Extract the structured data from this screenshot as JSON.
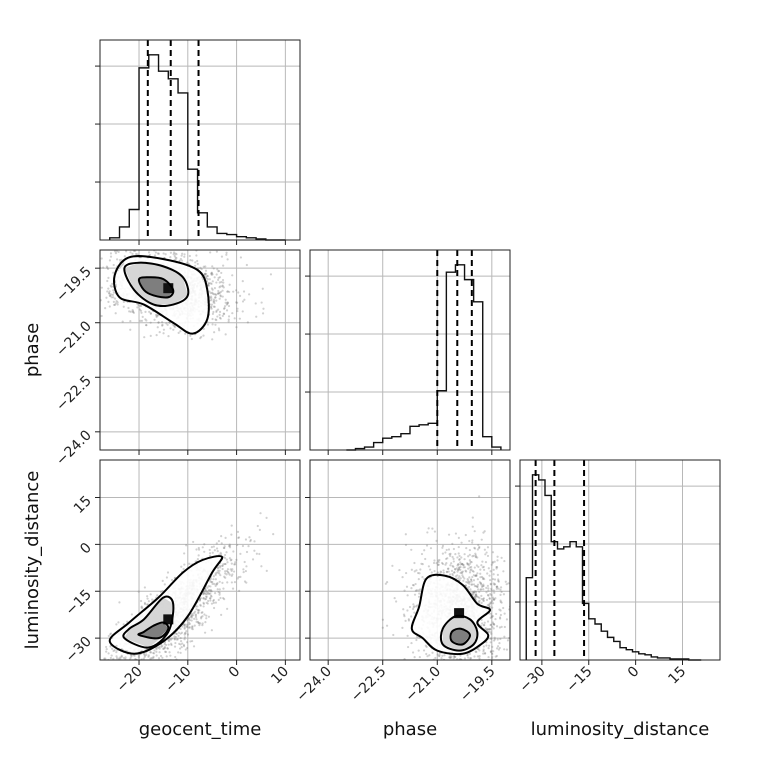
{
  "chart_data": {
    "type": "corner",
    "parameters": [
      {
        "name": "geocent_time",
        "label": "geocent_time",
        "lim": [
          -28,
          13
        ],
        "ticks": [
          -20,
          -10,
          0,
          10
        ],
        "tick_labels": [
          "−20",
          "−10",
          "0",
          "10"
        ],
        "quantiles": [
          -18.2,
          -13.5,
          -7.8
        ],
        "hist_bins": [
          -26,
          -24,
          -22,
          -20,
          -18,
          -16,
          -14,
          -12,
          -10,
          -8,
          -6,
          -4,
          -2,
          0,
          2,
          4,
          6,
          8,
          10
        ],
        "hist_values": [
          2,
          12,
          28,
          158,
          170,
          155,
          148,
          135,
          65,
          25,
          12,
          6,
          5,
          3,
          2,
          1,
          0,
          0
        ]
      },
      {
        "name": "phase",
        "label": "phase",
        "lim": [
          -24.5,
          -19.0
        ],
        "ticks": [
          -24.0,
          -22.5,
          -21.0,
          -19.5
        ],
        "tick_labels": [
          "−24.0",
          "−22.5",
          "−21.0",
          "−19.5"
        ],
        "quantiles": [
          -21.0,
          -20.45,
          -20.05
        ],
        "hist_bins": [
          -23.5,
          -23.25,
          -23.0,
          -22.75,
          -22.5,
          -22.25,
          -22.0,
          -21.75,
          -21.5,
          -21.25,
          -21.0,
          -20.75,
          -20.5,
          -20.25,
          -20.0,
          -19.75,
          -19.5,
          -19.25
        ],
        "hist_values": [
          0,
          1,
          2,
          5,
          8,
          9,
          11,
          16,
          17,
          18,
          40,
          120,
          125,
          115,
          100,
          9,
          2
        ]
      },
      {
        "name": "luminosity_distance",
        "label": "luminosity_distance",
        "lim": [
          -37,
          27
        ],
        "ticks": [
          -30,
          -15,
          0,
          15
        ],
        "tick_labels": [
          "−30",
          "−15",
          "0",
          "15"
        ],
        "quantiles": [
          -32,
          -26,
          -16.5
        ],
        "hist_bins": [
          -35,
          -33,
          -31,
          -29,
          -27,
          -25,
          -23,
          -21,
          -19,
          -17,
          -15,
          -13,
          -11,
          -9,
          -7,
          -5,
          -3,
          -1,
          1,
          3,
          5,
          7,
          9,
          11,
          13,
          15,
          17,
          19,
          21
        ],
        "hist_values": [
          80,
          180,
          175,
          160,
          115,
          108,
          110,
          115,
          110,
          55,
          40,
          35,
          28,
          22,
          18,
          12,
          10,
          8,
          6,
          5,
          3,
          2,
          2,
          1,
          1,
          1,
          0,
          0
        ]
      }
    ],
    "pair_plots": [
      {
        "x": "geocent_time",
        "y": "phase",
        "center": [
          -14,
          -20.05
        ],
        "std": [
          5.5,
          0.55
        ],
        "correlation": -0.25,
        "contours": [
          [
            [
              -20,
              -19.8
            ],
            [
              -18,
              -19.75
            ],
            [
              -15,
              -19.8
            ],
            [
              -13,
              -20.1
            ],
            [
              -14,
              -20.3
            ],
            [
              -17,
              -20.25
            ],
            [
              -19,
              -20.1
            ]
          ],
          [
            [
              -23,
              -19.5
            ],
            [
              -20,
              -19.35
            ],
            [
              -15,
              -19.45
            ],
            [
              -11,
              -19.75
            ],
            [
              -10,
              -20.25
            ],
            [
              -13,
              -20.5
            ],
            [
              -17,
              -20.5
            ],
            [
              -21,
              -20.1
            ]
          ],
          [
            [
              -25,
              -19.7
            ],
            [
              -22,
              -19.2
            ],
            [
              -15,
              -19.25
            ],
            [
              -8,
              -19.55
            ],
            [
              -6,
              -20.1
            ],
            [
              -6,
              -20.9
            ],
            [
              -9,
              -21.3
            ],
            [
              -13,
              -21.0
            ],
            [
              -19,
              -20.5
            ],
            [
              -24,
              -20.3
            ]
          ]
        ]
      },
      {
        "x": "geocent_time",
        "y": "luminosity_distance",
        "center": [
          -14,
          -24
        ],
        "std": [
          6,
          12
        ],
        "correlation": 0.85,
        "contours": [
          [
            [
              -20,
              -29
            ],
            [
              -16,
              -30
            ],
            [
              -14,
              -27
            ],
            [
              -15,
              -25
            ],
            [
              -17,
              -26
            ],
            [
              -19,
              -28
            ]
          ],
          [
            [
              -23,
              -30
            ],
            [
              -18,
              -33
            ],
            [
              -14,
              -28
            ],
            [
              -13,
              -19
            ],
            [
              -15,
              -17
            ],
            [
              -19,
              -24
            ],
            [
              -22,
              -27
            ]
          ],
          [
            [
              -26,
              -31
            ],
            [
              -21,
              -35
            ],
            [
              -15,
              -31
            ],
            [
              -10,
              -23
            ],
            [
              -5,
              -9
            ],
            [
              -3,
              -4
            ],
            [
              -7,
              -5
            ],
            [
              -11,
              -9
            ],
            [
              -16,
              -17
            ],
            [
              -22,
              -25
            ]
          ]
        ]
      },
      {
        "x": "phase",
        "y": "luminosity_distance",
        "center": [
          -20.4,
          -22
        ],
        "std": [
          0.55,
          12
        ],
        "correlation": 0.0,
        "contours": [
          [
            [
              -20.6,
              -31
            ],
            [
              -20.3,
              -32
            ],
            [
              -20.1,
              -29
            ],
            [
              -20.35,
              -27
            ],
            [
              -20.6,
              -28
            ]
          ],
          [
            [
              -20.85,
              -32
            ],
            [
              -20.4,
              -34
            ],
            [
              -20.0,
              -32
            ],
            [
              -19.9,
              -28
            ],
            [
              -20.1,
              -24
            ],
            [
              -20.5,
              -23
            ],
            [
              -20.85,
              -27
            ]
          ],
          [
            [
              -21.4,
              -30
            ],
            [
              -21.0,
              -34
            ],
            [
              -20.3,
              -35
            ],
            [
              -19.8,
              -32
            ],
            [
              -19.6,
              -29
            ],
            [
              -19.9,
              -25
            ],
            [
              -19.55,
              -21
            ],
            [
              -19.9,
              -19
            ],
            [
              -20.3,
              -13
            ],
            [
              -20.8,
              -10
            ],
            [
              -21.3,
              -11
            ],
            [
              -21.5,
              -20
            ],
            [
              -21.7,
              -27
            ]
          ]
        ]
      }
    ],
    "grid": true,
    "histogram_style": "step",
    "scatter_color": "#808080",
    "line_color": "#000000"
  }
}
